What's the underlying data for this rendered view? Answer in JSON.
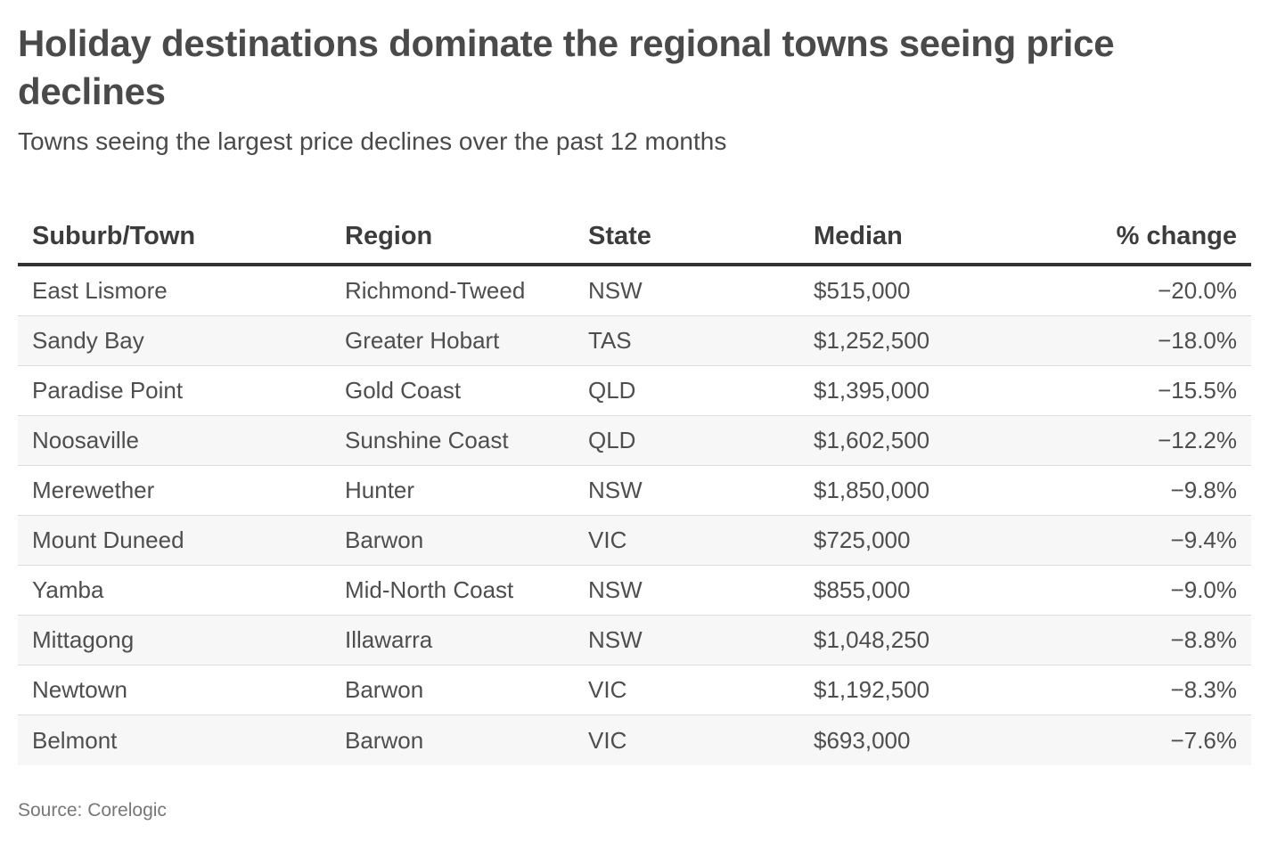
{
  "title": "Holiday destinations dominate the regional towns seeing price declines",
  "subtitle": "Towns seeing the largest price declines over the past 12 months",
  "source": "Source: Corelogic",
  "chart_data": {
    "type": "table",
    "columns": [
      "Suburb/Town",
      "Region",
      "State",
      "Median",
      "% change"
    ],
    "rows": [
      [
        "East Lismore",
        "Richmond-Tweed",
        "NSW",
        "$515,000",
        "−20.0%"
      ],
      [
        "Sandy Bay",
        "Greater Hobart",
        "TAS",
        "$1,252,500",
        "−18.0%"
      ],
      [
        "Paradise Point",
        "Gold Coast",
        "QLD",
        "$1,395,000",
        "−15.5%"
      ],
      [
        "Noosaville",
        "Sunshine Coast",
        "QLD",
        "$1,602,500",
        "−12.2%"
      ],
      [
        "Merewether",
        "Hunter",
        "NSW",
        "$1,850,000",
        "−9.8%"
      ],
      [
        "Mount Duneed",
        "Barwon",
        "VIC",
        "$725,000",
        "−9.4%"
      ],
      [
        "Yamba",
        "Mid-North Coast",
        "NSW",
        "$855,000",
        "−9.0%"
      ],
      [
        "Mittagong",
        "Illawarra",
        "NSW",
        "$1,048,250",
        "−8.8%"
      ],
      [
        "Newtown",
        "Barwon",
        "VIC",
        "$1,192,500",
        "−8.3%"
      ],
      [
        "Belmont",
        "Barwon",
        "VIC",
        "$693,000",
        "−7.6%"
      ]
    ]
  }
}
